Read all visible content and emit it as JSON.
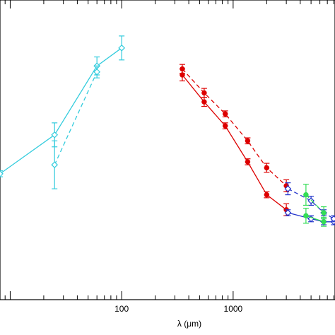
{
  "chart_data": {
    "type": "line",
    "title": "",
    "xlabel": "λ (μm)",
    "xscale": "log",
    "xlim": [
      8.1,
      8200
    ],
    "ylim": [
      0,
      1
    ],
    "x_tick_labels": [
      {
        "value": 100,
        "label": "100"
      },
      {
        "value": 1000,
        "label": "1000"
      }
    ],
    "grid": false,
    "legend": "none",
    "series": [
      {
        "color": "#33ccdd",
        "style": "solid",
        "marker": "diamond",
        "x": [
          8.1,
          25,
          60,
          100
        ],
        "y": [
          0.42,
          0.55,
          0.78,
          0.84
        ],
        "yerr": [
          0.01,
          0.04,
          0.03,
          0.04
        ]
      },
      {
        "color": "#33ccdd",
        "style": "dashed",
        "marker": "diamond",
        "x": [
          25,
          60
        ],
        "y": [
          0.45,
          0.76
        ],
        "yerr": [
          0.08,
          0.02
        ]
      },
      {
        "color": "#dd0000",
        "style": "solid",
        "marker": "circle",
        "x": [
          350,
          550,
          850,
          1350,
          2000,
          3000
        ],
        "y": [
          0.75,
          0.66,
          0.58,
          0.46,
          0.35,
          0.3
        ],
        "yerr": [
          0.02,
          0.015,
          0.01,
          0.01,
          0.01,
          0.02
        ]
      },
      {
        "color": "#dd0000",
        "style": "dashed",
        "marker": "circle",
        "x": [
          350,
          550,
          850,
          1350,
          2000,
          3000
        ],
        "y": [
          0.77,
          0.69,
          0.62,
          0.53,
          0.44,
          0.38
        ],
        "yerr": [
          0.015,
          0.015,
          0.01,
          0.01,
          0.015,
          0.02
        ]
      },
      {
        "color": "#2233cc",
        "style": "solid",
        "marker": "diamond",
        "x": [
          3100,
          5000,
          6500,
          8000
        ],
        "y": [
          0.29,
          0.27,
          0.26,
          0.26
        ],
        "yerr": [
          0.01,
          0.01,
          0.01,
          0.01
        ]
      },
      {
        "color": "#2233cc",
        "style": "dashed",
        "marker": "diamond",
        "x": [
          3100,
          5000,
          6500,
          8000
        ],
        "y": [
          0.37,
          0.33,
          0.29,
          0.27
        ],
        "yerr": [
          0.02,
          0.015,
          0.01,
          0.01
        ]
      },
      {
        "color": "#33dd55",
        "style": "dashed",
        "marker": "circle",
        "x": [
          4500,
          6500
        ],
        "y": [
          0.35,
          0.29
        ],
        "yerr": [
          0.035,
          0.02
        ]
      },
      {
        "color": "#33dd55",
        "style": "solid",
        "marker": "circle",
        "x": [
          4500,
          6500
        ],
        "y": [
          0.28,
          0.26
        ],
        "yerr": [
          0.025,
          0.015
        ]
      }
    ]
  }
}
